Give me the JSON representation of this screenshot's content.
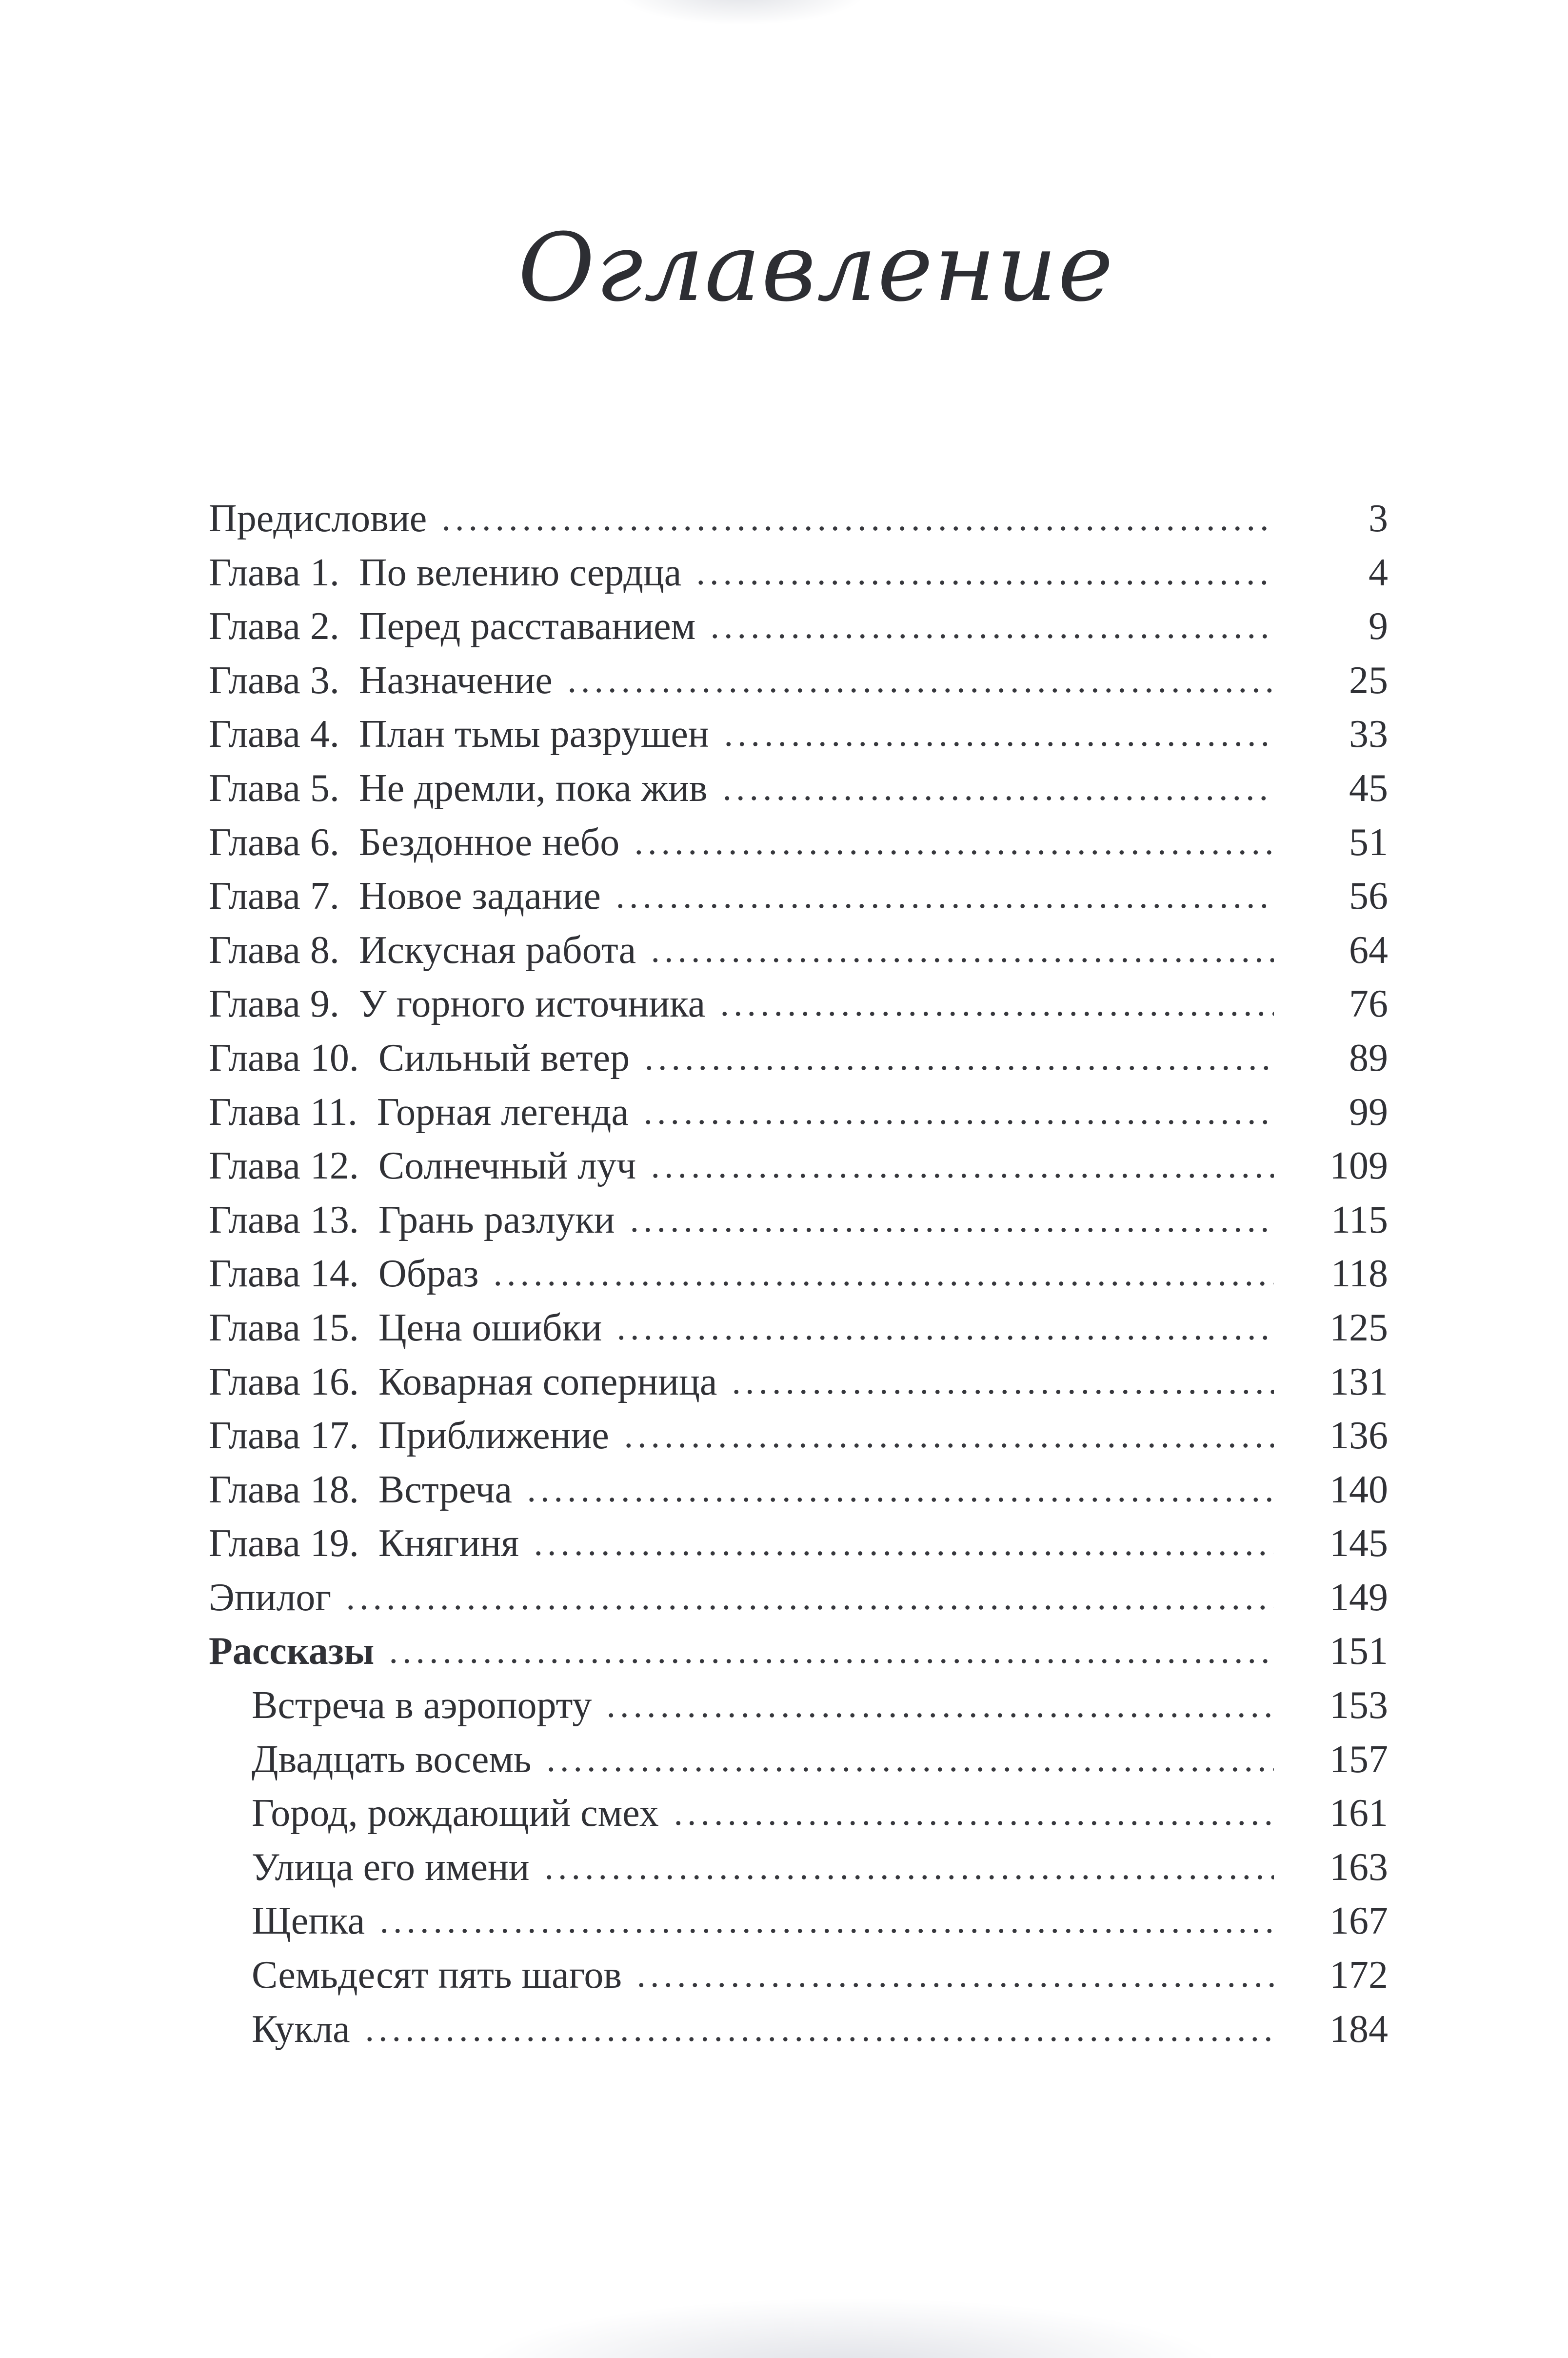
{
  "page": {
    "title": "Оглавление"
  },
  "toc": {
    "entries": [
      {
        "label": "Предисловие",
        "page": "3",
        "indent": false,
        "bold": false
      },
      {
        "label": "Глава 1. По велению сердца",
        "page": "4",
        "indent": false,
        "bold": false
      },
      {
        "label": "Глава 2. Перед расставанием",
        "page": "9",
        "indent": false,
        "bold": false
      },
      {
        "label": "Глава 3. Назначение",
        "page": "25",
        "indent": false,
        "bold": false
      },
      {
        "label": "Глава 4. План тьмы разрушен",
        "page": "33",
        "indent": false,
        "bold": false
      },
      {
        "label": "Глава 5. Не дремли, пока жив",
        "page": "45",
        "indent": false,
        "bold": false
      },
      {
        "label": "Глава 6. Бездонное небо",
        "page": "51",
        "indent": false,
        "bold": false
      },
      {
        "label": "Глава 7. Новое задание",
        "page": "56",
        "indent": false,
        "bold": false
      },
      {
        "label": "Глава 8. Искусная работа",
        "page": "64",
        "indent": false,
        "bold": false
      },
      {
        "label": "Глава 9. У горного источника",
        "page": "76",
        "indent": false,
        "bold": false
      },
      {
        "label": "Глава 10. Сильный ветер",
        "page": "89",
        "indent": false,
        "bold": false
      },
      {
        "label": "Глава 11. Горная легенда",
        "page": "99",
        "indent": false,
        "bold": false
      },
      {
        "label": "Глава 12. Солнечный луч",
        "page": "109",
        "indent": false,
        "bold": false
      },
      {
        "label": "Глава 13. Грань разлуки",
        "page": "115",
        "indent": false,
        "bold": false
      },
      {
        "label": "Глава 14. Образ",
        "page": "118",
        "indent": false,
        "bold": false
      },
      {
        "label": "Глава 15. Цена ошибки",
        "page": "125",
        "indent": false,
        "bold": false
      },
      {
        "label": "Глава 16. Коварная соперница",
        "page": "131",
        "indent": false,
        "bold": false
      },
      {
        "label": "Глава 17. Приближение",
        "page": "136",
        "indent": false,
        "bold": false
      },
      {
        "label": "Глава 18. Встреча",
        "page": "140",
        "indent": false,
        "bold": false
      },
      {
        "label": "Глава 19. Княгиня",
        "page": "145",
        "indent": false,
        "bold": false
      },
      {
        "label": "Эпилог",
        "page": "149",
        "indent": false,
        "bold": false
      },
      {
        "label": "Рассказы",
        "page": "151",
        "indent": false,
        "bold": true
      },
      {
        "label": "Встреча в аэропорту",
        "page": "153",
        "indent": true,
        "bold": false
      },
      {
        "label": "Двадцать восемь",
        "page": "157",
        "indent": true,
        "bold": false
      },
      {
        "label": "Город, рождающий смех",
        "page": "161",
        "indent": true,
        "bold": false
      },
      {
        "label": "Улица его имени",
        "page": "163",
        "indent": true,
        "bold": false
      },
      {
        "label": "Щепка",
        "page": "167",
        "indent": true,
        "bold": false
      },
      {
        "label": "Семьдесят пять шагов",
        "page": "172",
        "indent": true,
        "bold": false
      },
      {
        "label": "Кукла",
        "page": "184",
        "indent": true,
        "bold": false
      }
    ]
  }
}
